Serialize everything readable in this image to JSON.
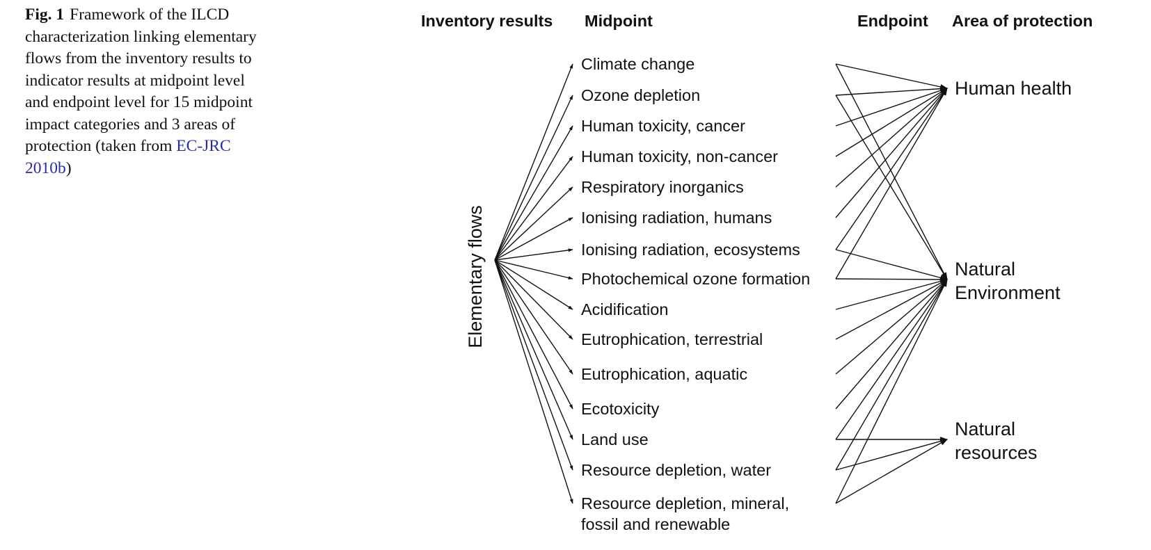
{
  "caption": {
    "fig_label": "Fig. 1",
    "text": "Framework of the ILCD characterization linking elementary flows from the inventory results to indicator results at midpoint level and endpoint level for 15 midpoint impact categories and 3 areas of protection (taken from ",
    "citation": "EC-JRC 2010b",
    "closing": ")",
    "citation_color": "#2a2aa8"
  },
  "headers": {
    "inventory": "Inventory results",
    "midpoint": "Midpoint",
    "endpoint": "Endpoint",
    "area_of_protection": "Area of protection"
  },
  "source_label": "Elementary flows",
  "midpoints": [
    [
      "Climate change"
    ],
    [
      "Ozone depletion"
    ],
    [
      "Human toxicity, cancer"
    ],
    [
      "Human toxicity, non-cancer"
    ],
    [
      "Respiratory inorganics"
    ],
    [
      "Ionising radiation, humans"
    ],
    [
      "Ionising radiation, ecosystems"
    ],
    [
      "Photochemical ozone formation"
    ],
    [
      "Acidification"
    ],
    [
      "Eutrophication, terrestrial"
    ],
    [
      "Eutrophication, aquatic"
    ],
    [
      "Ecotoxicity"
    ],
    [
      "Land use"
    ],
    [
      "Resource depletion, water"
    ],
    [
      "Resource depletion, mineral,",
      "fossil and renewable"
    ]
  ],
  "areas_of_protection": [
    [
      "Human health"
    ],
    [
      "Natural",
      "Environment"
    ],
    [
      "Natural",
      "resources"
    ]
  ],
  "links": [
    {
      "from": 0,
      "to": [
        0,
        1
      ]
    },
    {
      "from": 1,
      "to": [
        0,
        1
      ]
    },
    {
      "from": 2,
      "to": [
        0
      ]
    },
    {
      "from": 3,
      "to": [
        0
      ]
    },
    {
      "from": 4,
      "to": [
        0
      ]
    },
    {
      "from": 5,
      "to": [
        0
      ]
    },
    {
      "from": 6,
      "to": [
        0,
        1
      ]
    },
    {
      "from": 7,
      "to": [
        0,
        1
      ]
    },
    {
      "from": 8,
      "to": [
        1
      ]
    },
    {
      "from": 9,
      "to": [
        1
      ]
    },
    {
      "from": 10,
      "to": [
        1
      ]
    },
    {
      "from": 11,
      "to": [
        1
      ]
    },
    {
      "from": 12,
      "to": [
        1,
        2
      ]
    },
    {
      "from": 13,
      "to": [
        1,
        2
      ]
    },
    {
      "from": 14,
      "to": [
        1,
        2
      ]
    }
  ]
}
